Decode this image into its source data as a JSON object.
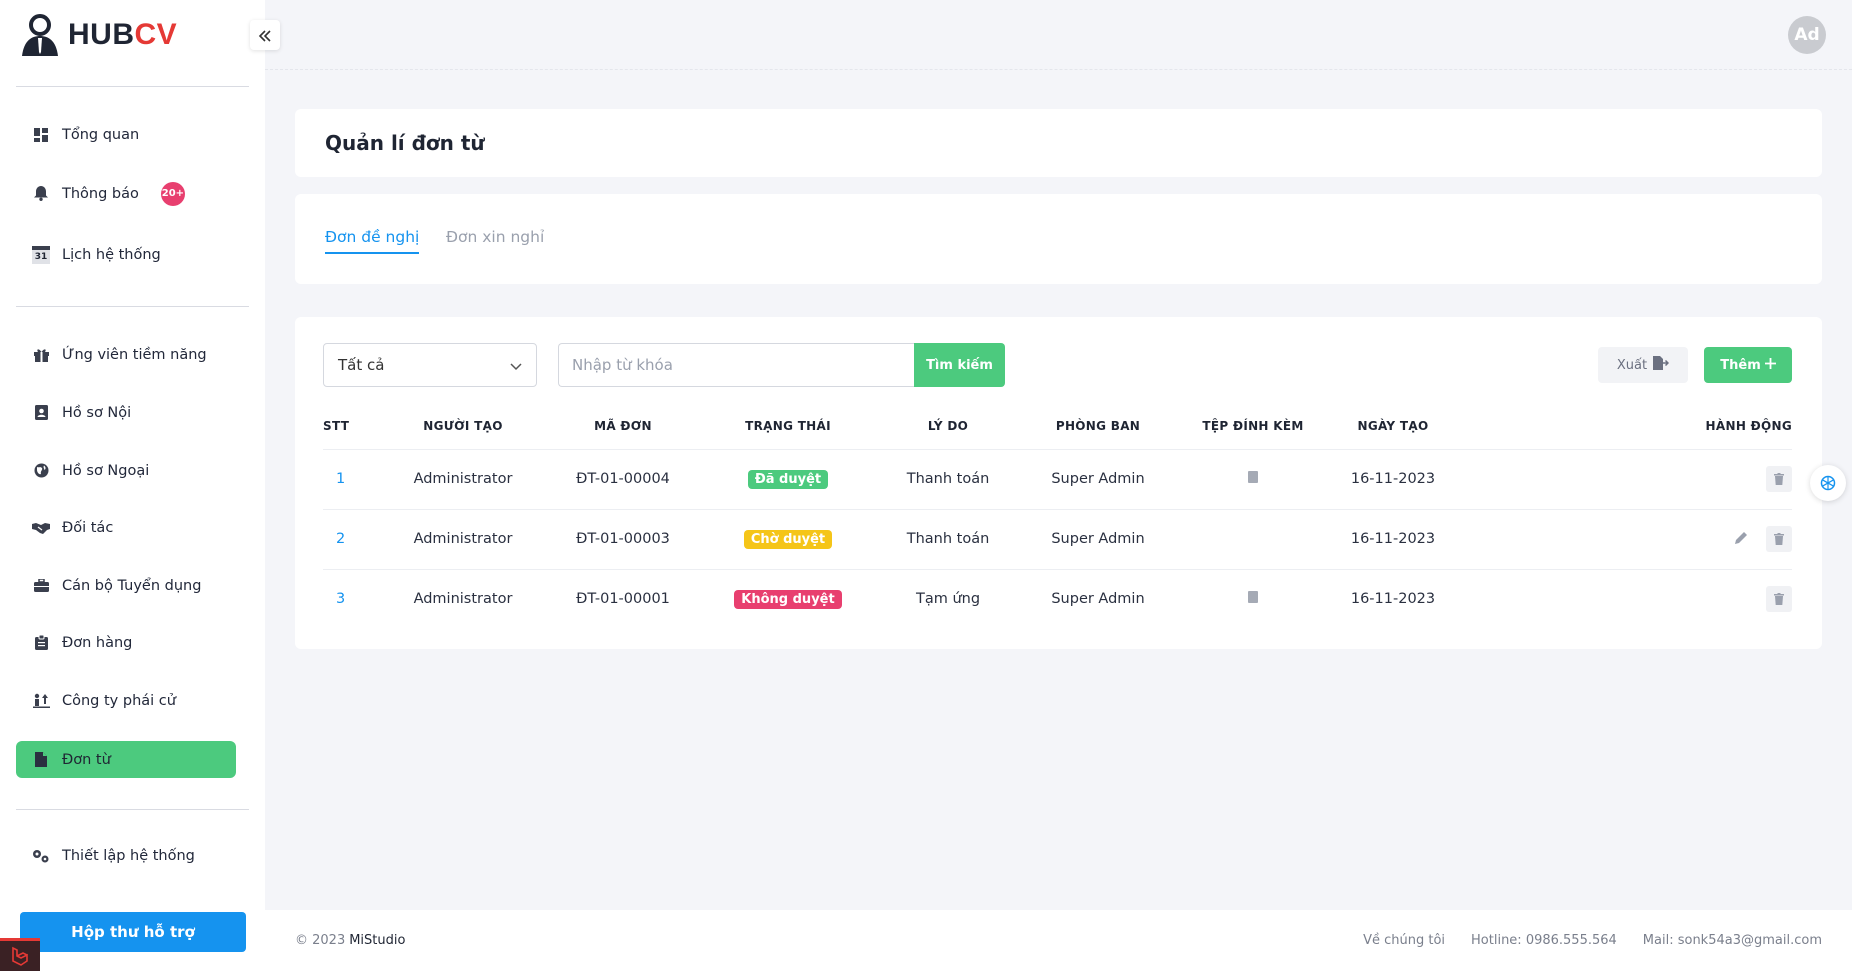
{
  "brand": {
    "hub": "HUB",
    "cv": "CV"
  },
  "header": {
    "avatar": "Ad"
  },
  "sidebar": {
    "items": [
      {
        "label": "Tổng quan"
      },
      {
        "label": "Thông báo",
        "badge": "20+"
      },
      {
        "label": "Lịch hệ thống",
        "icon_text": "31"
      },
      {
        "label": "Ứng viên tiềm năng"
      },
      {
        "label": "Hồ sơ Nội"
      },
      {
        "label": "Hồ sơ Ngoại"
      },
      {
        "label": "Đối tác"
      },
      {
        "label": "Cán bộ Tuyển dụng"
      },
      {
        "label": "Đơn hàng"
      },
      {
        "label": "Công ty phái cử"
      },
      {
        "label": "Đơn từ"
      },
      {
        "label": "Thiết lập hệ thống"
      }
    ],
    "support_button": "Hộp thư hỗ trợ"
  },
  "page": {
    "title": "Quản lí đơn từ"
  },
  "tabs": [
    {
      "label": "Đơn đề nghị",
      "active": true
    },
    {
      "label": "Đơn xin nghỉ",
      "active": false
    }
  ],
  "filters": {
    "status_select": "Tất cả",
    "search_placeholder": "Nhập từ khóa",
    "search_button": "Tìm kiếm",
    "export_button": "Xuất",
    "add_button": "Thêm"
  },
  "table": {
    "columns": [
      "STT",
      "NGƯỜI TẠO",
      "MÃ ĐƠN",
      "TRẠNG THÁI",
      "LÝ DO",
      "PHÒNG BAN",
      "TỆP ĐÍNH KÈM",
      "NGÀY TẠO",
      "HÀNH ĐỘNG"
    ],
    "rows": [
      {
        "stt": "1",
        "creator": "Administrator",
        "code": "ĐT-01-00004",
        "status": "Đã duyệt",
        "status_color": "#4cca7e",
        "reason": "Thanh toán",
        "department": "Super Admin",
        "attachment": true,
        "date": "16-11-2023",
        "editable": false
      },
      {
        "stt": "2",
        "creator": "Administrator",
        "code": "ĐT-01-00003",
        "status": "Chờ duyệt",
        "status_color": "#f5c518",
        "reason": "Thanh toán",
        "department": "Super Admin",
        "attachment": false,
        "date": "16-11-2023",
        "editable": true
      },
      {
        "stt": "3",
        "creator": "Administrator",
        "code": "ĐT-01-00001",
        "status": "Không duyệt",
        "status_color": "#e83f6f",
        "reason": "Tạm ứng",
        "department": "Super Admin",
        "attachment": true,
        "date": "16-11-2023",
        "editable": false
      }
    ]
  },
  "footer": {
    "copyright": "© 2023",
    "company": "MiStudio",
    "about": "Về chúng tôi",
    "hotline": "Hotline: 0986.555.564",
    "mail": "Mail: sonk54a3@gmail.com"
  },
  "colors": {
    "primary_green": "#4cca7e",
    "primary_blue": "#1593ef",
    "accent_red": "#e53935"
  }
}
